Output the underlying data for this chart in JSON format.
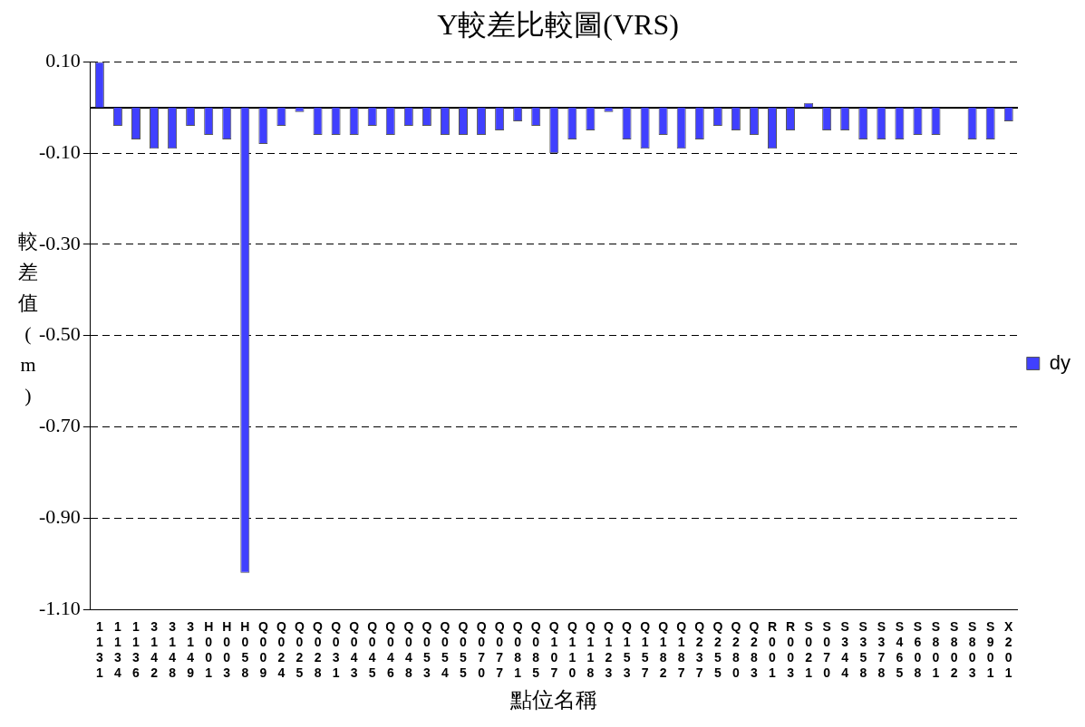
{
  "chart_data": {
    "type": "bar",
    "title": "Y較差比較圖(VRS)",
    "xlabel": "點位名稱",
    "ylabel": "較差值(m)",
    "categories": [
      "1131",
      "1134",
      "1136",
      "3142",
      "3148",
      "3149",
      "H001",
      "H003",
      "H058",
      "Q009",
      "Q024",
      "Q025",
      "Q028",
      "Q031",
      "Q043",
      "Q045",
      "Q046",
      "Q048",
      "Q053",
      "Q054",
      "Q055",
      "Q070",
      "Q077",
      "Q081",
      "Q085",
      "Q107",
      "Q110",
      "Q118",
      "Q123",
      "Q153",
      "Q157",
      "Q182",
      "Q187",
      "Q237",
      "Q255",
      "Q280",
      "Q283",
      "R001",
      "R003",
      "S021",
      "S070",
      "S344",
      "S358",
      "S378",
      "S465",
      "S608",
      "S801",
      "S802",
      "S803",
      "S901",
      "X201"
    ],
    "series": [
      {
        "name": "dy",
        "color": "#4040ff",
        "values": [
          0.1,
          -0.04,
          -0.07,
          -0.09,
          -0.09,
          -0.04,
          -0.06,
          -0.07,
          -1.02,
          -0.08,
          -0.04,
          -0.01,
          -0.06,
          -0.06,
          -0.06,
          -0.04,
          -0.06,
          -0.04,
          -0.04,
          -0.06,
          -0.06,
          -0.06,
          -0.05,
          -0.03,
          -0.04,
          -0.1,
          -0.07,
          -0.05,
          -0.01,
          -0.07,
          -0.09,
          -0.06,
          -0.09,
          -0.07,
          -0.04,
          -0.05,
          -0.06,
          -0.09,
          -0.05,
          0.01,
          -0.05,
          -0.05,
          -0.07,
          -0.07,
          -0.07,
          -0.06,
          -0.06,
          0,
          -0.07,
          -0.07,
          -0.03
        ]
      }
    ],
    "ylim": [
      -1.1,
      0.1
    ],
    "yticks": [
      {
        "value": 0.1,
        "label": "0.10"
      },
      {
        "value": -0.1,
        "label": "-0.10"
      },
      {
        "value": -0.3,
        "label": "-0.30"
      },
      {
        "value": -0.5,
        "label": "-0.50"
      },
      {
        "value": -0.7,
        "label": "-0.70"
      },
      {
        "value": -0.9,
        "label": "-0.90"
      },
      {
        "value": -1.1,
        "label": "-1.10"
      }
    ],
    "grid": "y",
    "legend": "right"
  }
}
